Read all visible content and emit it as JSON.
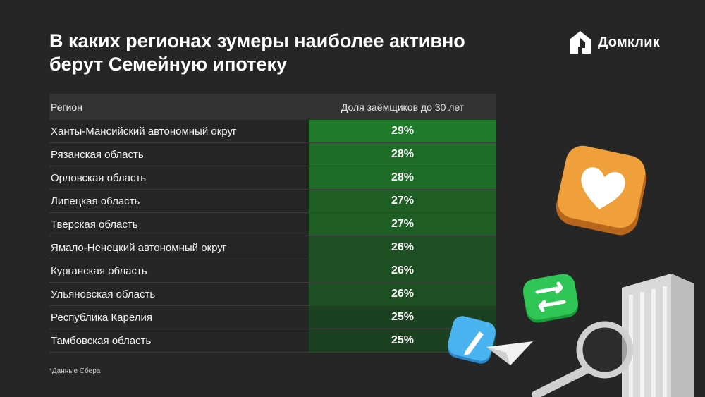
{
  "title": {
    "line1": "В каких регионах зумеры наиболее активно",
    "line2": "берут Семейную ипотеку"
  },
  "logo": {
    "text": "Домклик",
    "icon": "house-logo-icon"
  },
  "footnote": "*Данные Сбера",
  "colors": {
    "background": "#262626",
    "header_row": "#333333",
    "green_high": "#1f7a2a",
    "green_low": "#1b2e1c"
  },
  "chart_data": {
    "type": "table",
    "columns": [
      "Регион",
      "Доля заёмщиков до 30 лет"
    ],
    "rows": [
      {
        "region": "Ханты-Мансийский автономный округ",
        "share": "29%",
        "value": 29
      },
      {
        "region": "Рязанская область",
        "share": "28%",
        "value": 28
      },
      {
        "region": "Орловская область",
        "share": "28%",
        "value": 28
      },
      {
        "region": "Липецкая область",
        "share": "27%",
        "value": 27
      },
      {
        "region": "Тверская область",
        "share": "27%",
        "value": 27
      },
      {
        "region": "Ямало-Ненецкий автономный округ",
        "share": "26%",
        "value": 26
      },
      {
        "region": "Курганская область",
        "share": "26%",
        "value": 26
      },
      {
        "region": "Ульяновская область",
        "share": "26%",
        "value": 26
      },
      {
        "region": "Республика Карелия",
        "share": "25%",
        "value": 25
      },
      {
        "region": "Тамбовская область",
        "share": "25%",
        "value": 25
      }
    ]
  },
  "decorations": [
    "heart-icon",
    "swap-arrows-icon",
    "pencil-icon",
    "paper-plane-icon",
    "magnifier-icon",
    "building-icon"
  ]
}
